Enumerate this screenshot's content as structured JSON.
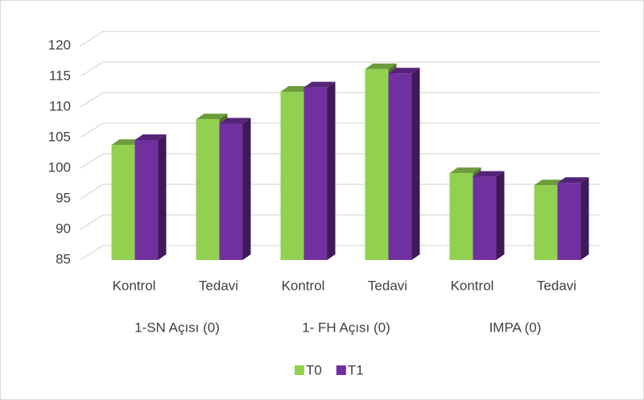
{
  "chart_data": {
    "type": "bar3d",
    "categories": [
      "Kontrol",
      "Tedavi",
      "Kontrol",
      "Tedavi",
      "Kontrol",
      "Tedavi"
    ],
    "groups": [
      "1-SN Açısı (0)",
      "1- FH Açısı (0)",
      "IMPA (0)"
    ],
    "series": [
      {
        "name": "T0",
        "color": "#92d050",
        "values": [
          103.8,
          108,
          112.5,
          116.2,
          99.2,
          97.2
        ]
      },
      {
        "name": "T1",
        "color": "#7030a0",
        "values": [
          104.6,
          107.3,
          113.2,
          115.5,
          98.6,
          97.6
        ]
      }
    ],
    "ylim": [
      85,
      120
    ],
    "yticks": [
      85,
      90,
      95,
      100,
      105,
      110,
      115,
      120
    ],
    "grid": true,
    "legend": "bottom"
  }
}
